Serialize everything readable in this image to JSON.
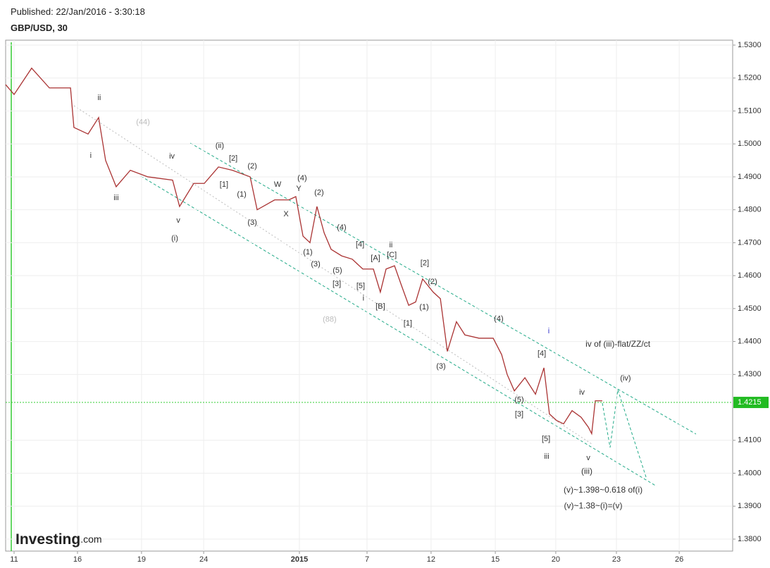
{
  "header": {
    "published": "Published: 22/Jan/2016 - 3:30:18",
    "symbol": "GBP/USD, 30"
  },
  "logo": {
    "brand": "Investing",
    "suffix": ".com"
  },
  "chart_data": {
    "type": "line",
    "x": [
      -0.4,
      0,
      0.83,
      1.67,
      2.67,
      2.83,
      3.5,
      4,
      4.33,
      4.83,
      5.5,
      6.33,
      7.5,
      7.83,
      8.5,
      9,
      9.67,
      10.33,
      11.17,
      11.5,
      12.33,
      13,
      13.33,
      13.67,
      14,
      14.33,
      14.67,
      15,
      15.5,
      16,
      16.5,
      17,
      17.33,
      17.6,
      18,
      18.33,
      18.67,
      19,
      19.33,
      19.83,
      20.17,
      20.5,
      20.93,
      21.33,
      22,
      22.67,
      23.07,
      23.33,
      23.67,
      24.17,
      24.67,
      25.07,
      25.33,
      25.67,
      26,
      26.4,
      26.83,
      27.17,
      27.33,
      27.5,
      27.83
    ],
    "series": [
      {
        "color": "#a33",
        "values": [
          1.518,
          1.515,
          1.523,
          1.517,
          1.517,
          1.505,
          1.503,
          1.508,
          1.495,
          1.487,
          1.492,
          1.49,
          1.489,
          1.481,
          1.488,
          1.488,
          1.493,
          1.492,
          1.49,
          1.48,
          1.483,
          1.483,
          1.484,
          1.472,
          1.47,
          1.481,
          1.473,
          1.468,
          1.466,
          1.465,
          1.462,
          1.462,
          1.455,
          1.462,
          1.463,
          1.457,
          1.451,
          1.452,
          1.459,
          1.455,
          1.453,
          1.437,
          1.446,
          1.442,
          1.441,
          1.441,
          1.436,
          1.43,
          1.425,
          1.429,
          1.424,
          1.432,
          1.418,
          1.416,
          1.415,
          1.419,
          1.417,
          1.414,
          1.412,
          1.422,
          1.422
        ]
      }
    ],
    "xlim": [
      -0.4,
      34
    ],
    "ylim": [
      1.37636,
      1.5315
    ],
    "xticks": [
      {
        "value": 0,
        "label": "11"
      },
      {
        "value": 3,
        "label": "16"
      },
      {
        "value": 6.03,
        "label": "19"
      },
      {
        "value": 8.97,
        "label": "24"
      },
      {
        "value": 13.5,
        "label": "2015"
      },
      {
        "value": 16.7,
        "label": "7"
      },
      {
        "value": 19.73,
        "label": "12"
      },
      {
        "value": 22.77,
        "label": "15"
      },
      {
        "value": 25.63,
        "label": "20"
      },
      {
        "value": 28.5,
        "label": "23"
      },
      {
        "value": 31.47,
        "label": "26"
      }
    ],
    "yticks": [
      {
        "value": 1.53,
        "label": "1.5300"
      },
      {
        "value": 1.52,
        "label": "1.5200"
      },
      {
        "value": 1.51,
        "label": "1.5100"
      },
      {
        "value": 1.5,
        "label": "1.5000"
      },
      {
        "value": 1.49,
        "label": "1.4900"
      },
      {
        "value": 1.48,
        "label": "1.4800"
      },
      {
        "value": 1.47,
        "label": "1.4700"
      },
      {
        "value": 1.46,
        "label": "1.4600"
      },
      {
        "value": 1.45,
        "label": "1.4500"
      },
      {
        "value": 1.44,
        "label": "1.4400"
      },
      {
        "value": 1.43,
        "label": "1.4300"
      },
      {
        "value": 1.41,
        "label": "1.4100"
      },
      {
        "value": 1.4,
        "label": "1.4000"
      },
      {
        "value": 1.39,
        "label": "1.3900"
      },
      {
        "value": 1.38,
        "label": "1.3800"
      }
    ],
    "last_price": {
      "value": 1.4215,
      "label": "1.4215"
    },
    "grid": true,
    "annotations": [
      {
        "text": "ii",
        "x": 4.03,
        "y": 1.5139
      },
      {
        "text": "(44)",
        "x": 6.1,
        "y": 1.5065,
        "color": "#bbb"
      },
      {
        "text": "i",
        "x": 3.63,
        "y": 1.4964
      },
      {
        "text": "iv",
        "x": 7.47,
        "y": 1.4962
      },
      {
        "text": "iii",
        "x": 4.83,
        "y": 1.4836
      },
      {
        "text": "v",
        "x": 7.77,
        "y": 1.4767
      },
      {
        "text": "(i)",
        "x": 7.6,
        "y": 1.4712
      },
      {
        "text": "(ii)",
        "x": 9.73,
        "y": 1.4994
      },
      {
        "text": "[2]",
        "x": 10.37,
        "y": 1.4955
      },
      {
        "text": "(2)",
        "x": 11.27,
        "y": 1.4932
      },
      {
        "text": "[1]",
        "x": 9.93,
        "y": 1.4876
      },
      {
        "text": "(1)",
        "x": 10.77,
        "y": 1.4846
      },
      {
        "text": "(3)",
        "x": 11.27,
        "y": 1.4761
      },
      {
        "text": "W",
        "x": 12.47,
        "y": 1.4876
      },
      {
        "text": "Y",
        "x": 13.47,
        "y": 1.4863
      },
      {
        "text": "(4)",
        "x": 13.63,
        "y": 1.4895
      },
      {
        "text": "X",
        "x": 12.87,
        "y": 1.4786
      },
      {
        "text": "(2)",
        "x": 14.43,
        "y": 1.4852
      },
      {
        "text": "(4)",
        "x": 15.5,
        "y": 1.4746
      },
      {
        "text": "(1)",
        "x": 13.9,
        "y": 1.4671
      },
      {
        "text": "(3)",
        "x": 14.27,
        "y": 1.4634
      },
      {
        "text": "(5)",
        "x": 15.3,
        "y": 1.4615
      },
      {
        "text": "[3]",
        "x": 15.27,
        "y": 1.4574
      },
      {
        "text": "[4]",
        "x": 16.37,
        "y": 1.4694
      },
      {
        "text": "ii",
        "x": 17.83,
        "y": 1.4692
      },
      {
        "text": "[C]",
        "x": 17.87,
        "y": 1.4662
      },
      {
        "text": "[A]",
        "x": 17.1,
        "y": 1.4653
      },
      {
        "text": "[5]",
        "x": 16.4,
        "y": 1.4568
      },
      {
        "text": "i",
        "x": 16.53,
        "y": 1.4531
      },
      {
        "text": "[B]",
        "x": 17.33,
        "y": 1.4506
      },
      {
        "text": "[2]",
        "x": 19.43,
        "y": 1.4638
      },
      {
        "text": "(2)",
        "x": 19.8,
        "y": 1.4581
      },
      {
        "text": "(1)",
        "x": 19.4,
        "y": 1.4504
      },
      {
        "text": "[1]",
        "x": 18.63,
        "y": 1.4455
      },
      {
        "text": "(88)",
        "x": 14.93,
        "y": 1.4466,
        "color": "#bbb"
      },
      {
        "text": "(4)",
        "x": 22.93,
        "y": 1.4468
      },
      {
        "text": "(3)",
        "x": 20.2,
        "y": 1.4324
      },
      {
        "text": "i",
        "x": 25.3,
        "y": 1.4431,
        "color": "#33c"
      },
      {
        "text": "[4]",
        "x": 24.97,
        "y": 1.4363
      },
      {
        "text": "iv of (iii)-flat/ZZ/ct",
        "x": 28.57,
        "y": 1.4391
      },
      {
        "text": "(iv)",
        "x": 28.93,
        "y": 1.4288
      },
      {
        "text": "iv",
        "x": 26.87,
        "y": 1.4245
      },
      {
        "text": "(5)",
        "x": 23.9,
        "y": 1.4222
      },
      {
        "text": "[3]",
        "x": 23.9,
        "y": 1.4179
      },
      {
        "text": "[5]",
        "x": 25.17,
        "y": 1.4104
      },
      {
        "text": "iii",
        "x": 25.2,
        "y": 1.405
      },
      {
        "text": "v",
        "x": 27.17,
        "y": 1.4046
      },
      {
        "text": "(iii)",
        "x": 27.1,
        "y": 1.4005
      },
      {
        "text": "(v)~1.398~0.618 of(i)",
        "x": 27.87,
        "y": 1.3948
      },
      {
        "text": "(v)~1.38~(i)=(v)",
        "x": 27.4,
        "y": 1.39
      }
    ]
  }
}
